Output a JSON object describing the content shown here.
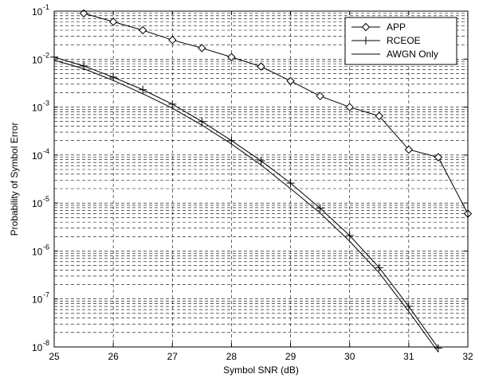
{
  "chart_data": {
    "type": "line",
    "xlabel": "Symbol SNR (dB)",
    "ylabel": "Probability of Symbol Error",
    "xlim": [
      25,
      32
    ],
    "ylim": [
      1e-08,
      0.1
    ],
    "yscale": "log",
    "grid": true,
    "legend_position": "top-right",
    "x_ticks": [
      "25",
      "26",
      "27",
      "28",
      "29",
      "30",
      "31",
      "32"
    ],
    "y_ticks": [
      {
        "base": "10",
        "exp": "-8",
        "value": 1e-08
      },
      {
        "base": "10",
        "exp": "-7",
        "value": 1e-07
      },
      {
        "base": "10",
        "exp": "-6",
        "value": 1e-06
      },
      {
        "base": "10",
        "exp": "-5",
        "value": 1e-05
      },
      {
        "base": "10",
        "exp": "-4",
        "value": 0.0001
      },
      {
        "base": "10",
        "exp": "-3",
        "value": 0.001
      },
      {
        "base": "10",
        "exp": "-2",
        "value": 0.01
      },
      {
        "base": "10",
        "exp": "-1",
        "value": 0.1
      }
    ],
    "series": [
      {
        "name": "APP",
        "marker": "diamond",
        "x": [
          25.5,
          26,
          26.5,
          27,
          27.5,
          28,
          28.5,
          29,
          29.5,
          30,
          30.5,
          31,
          31.5,
          32
        ],
        "y": [
          0.09,
          0.06,
          0.04,
          0.025,
          0.017,
          0.011,
          0.007,
          0.0035,
          0.0017,
          0.001,
          0.00065,
          0.00013,
          9e-05,
          6e-06
        ]
      },
      {
        "name": "RCEOE",
        "marker": "plus",
        "x": [
          25,
          25.5,
          26,
          26.5,
          27,
          27.5,
          28,
          28.5,
          29,
          29.5,
          30,
          30.5,
          31,
          31.5
        ],
        "y": [
          0.011,
          0.0072,
          0.0042,
          0.0023,
          0.00115,
          0.0005,
          0.0002,
          7.6e-05,
          2.6e-05,
          7.8e-06,
          2.1e-06,
          4.5e-07,
          7e-08,
          9.5e-09
        ]
      },
      {
        "name": "AWGN Only",
        "marker": "none",
        "x": [
          25,
          25.5,
          26,
          26.5,
          27,
          27.5,
          28,
          28.5,
          29,
          29.5,
          30,
          30.5,
          31,
          31.5
        ],
        "y": [
          0.0095,
          0.0063,
          0.0036,
          0.0019,
          0.00095,
          0.00042,
          0.00017,
          6.2e-05,
          2e-05,
          6.2e-06,
          1.6e-06,
          3.5e-07,
          5.5e-08,
          7.8e-09
        ]
      }
    ]
  }
}
